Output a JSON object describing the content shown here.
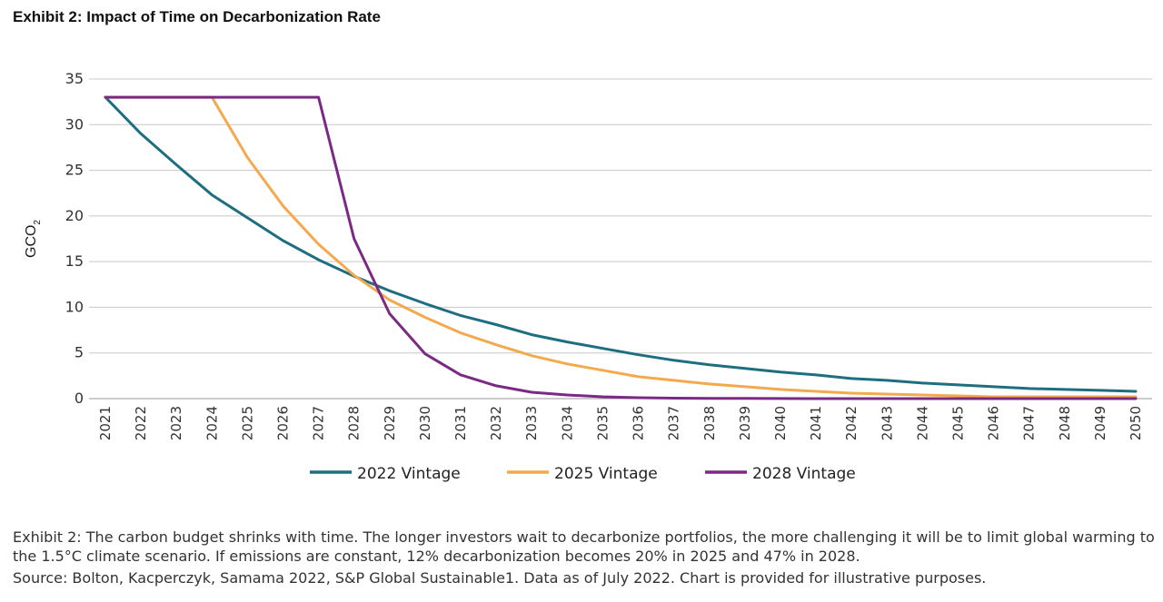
{
  "exhibit_title": "Exhibit 2: Impact of Time on Decarbonization Rate",
  "caption": "Exhibit 2: The carbon budget shrinks with time. The longer investors wait to decarbonize portfolios, the more challenging it will be to limit global warming to the 1.5°C climate scenario. If emissions are constant, 12% decarbonization becomes 20% in 2025 and 47% in 2028.",
  "source": "Source: Bolton, Kacperczyk, Samama 2022, S&P Global Sustainable1. Data as of July 2022. Chart is provided for illustrative purposes.",
  "chart_data": {
    "type": "line",
    "title": "",
    "xlabel": "",
    "ylabel": "GCO",
    "ylabel_subscript": "2",
    "ylim": [
      0,
      35
    ],
    "yticks": [
      0,
      5,
      10,
      15,
      20,
      25,
      30,
      35
    ],
    "grid": true,
    "legend_position": "bottom",
    "categories": [
      "2021",
      "2022",
      "2023",
      "2024",
      "2025",
      "2026",
      "2027",
      "2028",
      "2029",
      "2030",
      "2031",
      "2032",
      "2033",
      "2034",
      "2035",
      "2036",
      "2037",
      "2038",
      "2039",
      "2040",
      "2041",
      "2042",
      "2043",
      "2044",
      "2045",
      "2046",
      "2047",
      "2048",
      "2049",
      "2050"
    ],
    "series": [
      {
        "name": "2022 Vintage",
        "color": "#1d6e80",
        "values": [
          33,
          29,
          25.6,
          22.3,
          19.8,
          17.3,
          15.2,
          13.4,
          11.8,
          10.4,
          9.1,
          8.1,
          7.0,
          6.2,
          5.5,
          4.8,
          4.2,
          3.7,
          3.3,
          2.9,
          2.6,
          2.2,
          2.0,
          1.7,
          1.5,
          1.3,
          1.1,
          1.0,
          0.9,
          0.8
        ]
      },
      {
        "name": "2025 Vintage",
        "color": "#f4a94e",
        "values": [
          33,
          33,
          33,
          33,
          26.4,
          21.1,
          16.9,
          13.5,
          10.8,
          8.9,
          7.2,
          5.9,
          4.7,
          3.8,
          3.1,
          2.4,
          2.0,
          1.6,
          1.3,
          1.0,
          0.8,
          0.6,
          0.5,
          0.4,
          0.3,
          0.2,
          0.2,
          0.2,
          0.2,
          0.2
        ]
      },
      {
        "name": "2028 Vintage",
        "color": "#7b2a84",
        "values": [
          33,
          33,
          33,
          33,
          33,
          33,
          33,
          17.5,
          9.3,
          4.9,
          2.6,
          1.4,
          0.7,
          0.4,
          0.2,
          0.1,
          0.05,
          0.03,
          0.02,
          0.01,
          0,
          0,
          0,
          0,
          0,
          0,
          0,
          0,
          0,
          0
        ]
      }
    ]
  }
}
